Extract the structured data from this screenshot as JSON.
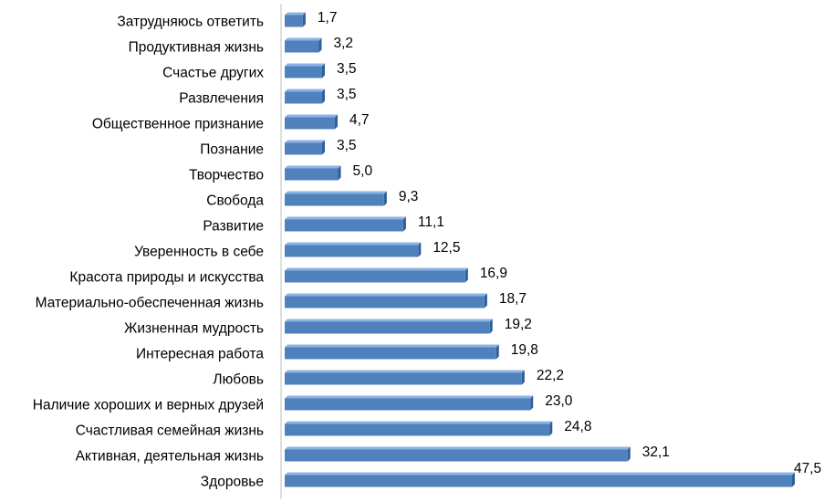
{
  "chart_data": {
    "type": "bar",
    "orientation": "horizontal",
    "title": "",
    "xlabel": "",
    "ylabel": "",
    "xlim": [
      0,
      47.5
    ],
    "grid": false,
    "legend": "none",
    "bar_color": "#4f81bd",
    "bar_side_color": "#2e5f97",
    "bar_top_color": "#8db3e2",
    "axis_color": "#bfbfbf",
    "categories": [
      "Затрудняюсь ответить",
      "Продуктивная жизнь",
      "Счастье других",
      "Развлечения",
      "Общественное признание",
      "Познание",
      "Творчество",
      "Свобода",
      "Развитие",
      "Уверенность в себе",
      "Красота природы и искусства",
      "Материально-обеспеченная жизнь",
      "Жизненная мудрость",
      "Интересная работа",
      "Любовь",
      "Наличие хороших и верных друзей",
      "Счастливая семейная жизнь",
      "Активная, деятельная жизнь",
      "Здоровье"
    ],
    "values": [
      1.7,
      3.2,
      3.5,
      3.5,
      4.7,
      3.5,
      5.0,
      9.3,
      11.1,
      12.5,
      16.9,
      18.7,
      19.2,
      19.8,
      22.2,
      23.0,
      24.8,
      32.1,
      47.5
    ],
    "value_labels": [
      "1,7",
      "3,2",
      "3,5",
      "3,5",
      "4,7",
      "3,5",
      "5,0",
      "9,3",
      "11,1",
      "12,5",
      "16,9",
      "18,7",
      "19,2",
      "19,8",
      "22,2",
      "23,0",
      "24,8",
      "32,1",
      "47,5"
    ]
  }
}
